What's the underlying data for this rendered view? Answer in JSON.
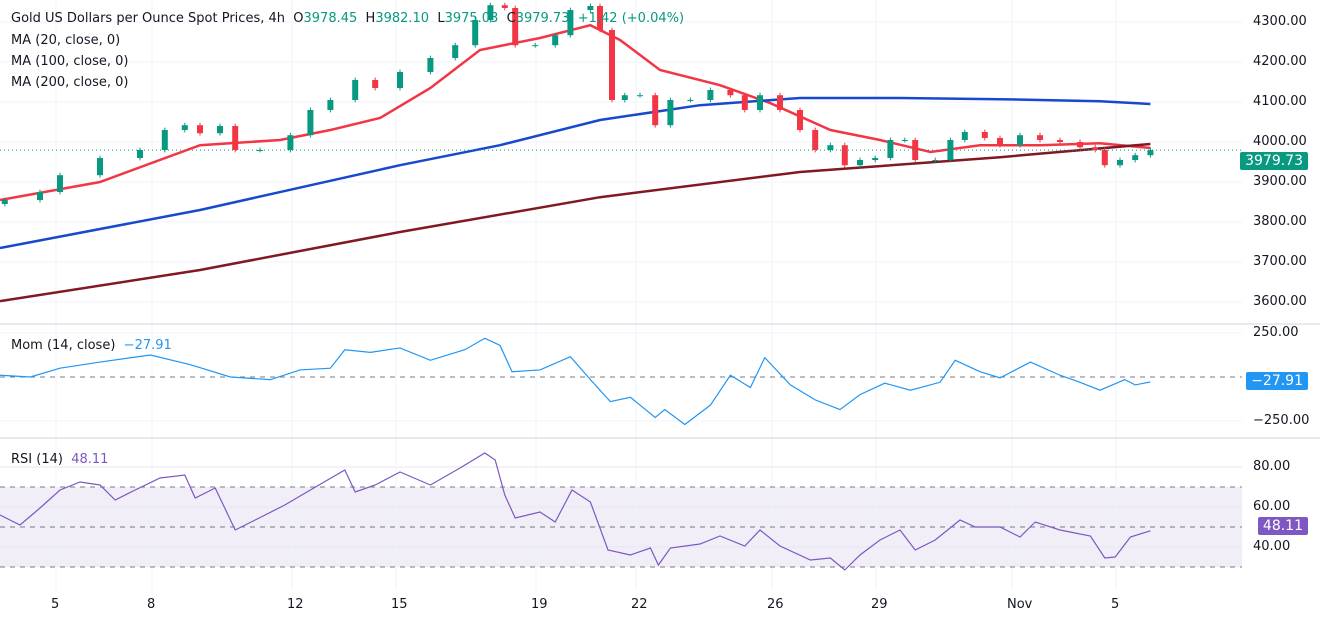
{
  "header": {
    "title": "Gold US Dollars per Ounce Spot Prices, 4h",
    "o_label": "O",
    "o": "3978.45",
    "h_label": "H",
    "h": "3982.10",
    "l_label": "L",
    "l": "3975.03",
    "c_label": "C",
    "c": "3979.73",
    "change": "+1.42 (+0.04%)"
  },
  "indicators": {
    "ma20": "MA (20, close, 0)",
    "ma100": "MA (100, close, 0)",
    "ma200": "MA (200, close, 0)",
    "mom": "Mom (14, close)",
    "mom_value": "−27.91",
    "rsi": "RSI (14)",
    "rsi_value": "48.11"
  },
  "colors": {
    "up": "#089981",
    "down": "#f23645",
    "ma20": "#f23645",
    "ma100": "#1848cc",
    "ma200": "#801922",
    "mom": "#2196f3",
    "rsi": "#7e57c2",
    "rsi_band": "#f1eef8"
  },
  "chart_data": [
    {
      "type": "candlestick",
      "title": "Gold US Dollars per Ounce Spot Prices, 4h",
      "x_unit": "4h bar index",
      "ylim": [
        3600,
        4300
      ],
      "y_ticks": [
        "4300.00",
        "4200.00",
        "4100.00",
        "4000.00",
        "3900.00",
        "3800.00",
        "3700.00",
        "3600.00"
      ],
      "last_price": "3979.73",
      "x_ticks": [
        {
          "bar": 7,
          "label": "5"
        },
        {
          "bar": 19,
          "label": "8"
        },
        {
          "bar": 36.5,
          "label": "12"
        },
        {
          "bar": 49.5,
          "label": "15"
        },
        {
          "bar": 67,
          "label": "19"
        },
        {
          "bar": 79.5,
          "label": "22"
        },
        {
          "bar": 96.5,
          "label": "26"
        },
        {
          "bar": 109.5,
          "label": "29"
        },
        {
          "bar": 126.5,
          "label": "Nov"
        },
        {
          "bar": 139.5,
          "label": "5"
        }
      ],
      "closes": [
        [
          0.6,
          3855
        ],
        [
          5,
          3875
        ],
        [
          7.5,
          3917
        ],
        [
          12.5,
          3960
        ],
        [
          17.5,
          3980
        ],
        [
          20.6,
          4030
        ],
        [
          23.1,
          4042
        ],
        [
          25,
          4022
        ],
        [
          27.5,
          4040
        ],
        [
          29.4,
          3980
        ],
        [
          32.5,
          3980
        ],
        [
          36.3,
          4017
        ],
        [
          38.8,
          4080
        ],
        [
          41.3,
          4105
        ],
        [
          44.4,
          4155
        ],
        [
          46.9,
          4135
        ],
        [
          50,
          4175
        ],
        [
          53.8,
          4210
        ],
        [
          56.9,
          4242
        ],
        [
          59.4,
          4305
        ],
        [
          61.3,
          4342
        ],
        [
          63.1,
          4335
        ],
        [
          64.4,
          4242
        ],
        [
          66.9,
          4242
        ],
        [
          69.4,
          4267
        ],
        [
          71.3,
          4330
        ],
        [
          73.8,
          4340
        ],
        [
          75,
          4280
        ],
        [
          76.5,
          4105
        ],
        [
          78.1,
          4117
        ],
        [
          80,
          4117
        ],
        [
          81.9,
          4042
        ],
        [
          83.8,
          4105
        ],
        [
          86.3,
          4105
        ],
        [
          88.8,
          4130
        ],
        [
          91.3,
          4117
        ],
        [
          93.1,
          4080
        ],
        [
          95,
          4117
        ],
        [
          97.5,
          4080
        ],
        [
          100,
          4030
        ],
        [
          101.9,
          3980
        ],
        [
          103.8,
          3992
        ],
        [
          105.6,
          3942
        ],
        [
          107.5,
          3955
        ],
        [
          109.4,
          3960
        ],
        [
          111.3,
          4005
        ],
        [
          113.1,
          4005
        ],
        [
          114.4,
          3955
        ],
        [
          116.9,
          3955
        ],
        [
          118.8,
          4005
        ],
        [
          120.6,
          4025
        ],
        [
          123.1,
          4010
        ],
        [
          125,
          3992
        ],
        [
          127.5,
          4017
        ],
        [
          130,
          4005
        ],
        [
          132.5,
          4000
        ],
        [
          135,
          3987
        ],
        [
          136.9,
          3980
        ],
        [
          138.1,
          3942
        ],
        [
          140,
          3955
        ],
        [
          141.9,
          3967
        ],
        [
          143.8,
          3979.73
        ]
      ],
      "series": [
        {
          "name": "MA (20, close, 0)",
          "points": [
            [
              0,
              3855
            ],
            [
              12.5,
              3900
            ],
            [
              25,
              3992
            ],
            [
              35,
              4005
            ],
            [
              41.3,
              4030
            ],
            [
              47.5,
              4060
            ],
            [
              53.8,
              4135
            ],
            [
              60,
              4230
            ],
            [
              67.5,
              4260
            ],
            [
              73.8,
              4292
            ],
            [
              77.5,
              4255
            ],
            [
              82.5,
              4180
            ],
            [
              90,
              4142
            ],
            [
              96.3,
              4097
            ],
            [
              103.8,
              4030
            ],
            [
              110,
              4005
            ],
            [
              116.3,
              3975
            ],
            [
              122.5,
              3992
            ],
            [
              130,
              3992
            ],
            [
              137.5,
              3997
            ],
            [
              143.8,
              3985
            ]
          ]
        },
        {
          "name": "MA (100, close, 0)",
          "points": [
            [
              0,
              3735
            ],
            [
              25,
              3830
            ],
            [
              50,
              3942
            ],
            [
              62.5,
              3992
            ],
            [
              75,
              4055
            ],
            [
              87.5,
              4092
            ],
            [
              100,
              4110
            ],
            [
              112.5,
              4110
            ],
            [
              125,
              4107
            ],
            [
              137.5,
              4102
            ],
            [
              143.8,
              4095
            ]
          ]
        },
        {
          "name": "MA (200, close, 0)",
          "points": [
            [
              0,
              3602
            ],
            [
              25,
              3680
            ],
            [
              50,
              3775
            ],
            [
              75,
              3862
            ],
            [
              100,
              3925
            ],
            [
              125,
              3962
            ],
            [
              143.8,
              3995
            ]
          ]
        }
      ]
    },
    {
      "type": "line",
      "name": "Mom (14, close)",
      "ylim": [
        -250,
        250
      ],
      "y_ticks": [
        "250.00",
        "−250.00"
      ],
      "last": "−27.91",
      "points": [
        [
          0,
          10
        ],
        [
          3.8,
          0
        ],
        [
          7.5,
          50
        ],
        [
          12.5,
          85
        ],
        [
          18.8,
          125
        ],
        [
          23.8,
          70
        ],
        [
          28.8,
          0
        ],
        [
          33.8,
          -15
        ],
        [
          37.5,
          40
        ],
        [
          41.3,
          50
        ],
        [
          43.1,
          155
        ],
        [
          46.3,
          140
        ],
        [
          50,
          165
        ],
        [
          53.8,
          95
        ],
        [
          58.1,
          155
        ],
        [
          60.6,
          220
        ],
        [
          62.5,
          180
        ],
        [
          64,
          30
        ],
        [
          67.5,
          40
        ],
        [
          71.3,
          115
        ],
        [
          73.8,
          -15
        ],
        [
          76.3,
          -140
        ],
        [
          78.8,
          -115
        ],
        [
          81.9,
          -230
        ],
        [
          83.1,
          -185
        ],
        [
          85.6,
          -270
        ],
        [
          88.8,
          -160
        ],
        [
          91.3,
          10
        ],
        [
          93.8,
          -60
        ],
        [
          95.6,
          110
        ],
        [
          98.8,
          -45
        ],
        [
          101.9,
          -130
        ],
        [
          105,
          -185
        ],
        [
          107.5,
          -100
        ],
        [
          110.6,
          -35
        ],
        [
          113.8,
          -75
        ],
        [
          117.5,
          -30
        ],
        [
          119.4,
          95
        ],
        [
          122.5,
          30
        ],
        [
          125,
          -5
        ],
        [
          128.8,
          85
        ],
        [
          132.5,
          10
        ],
        [
          135,
          -30
        ],
        [
          137.5,
          -75
        ],
        [
          140.6,
          -15
        ],
        [
          141.9,
          -45
        ],
        [
          143.8,
          -27.91
        ]
      ]
    },
    {
      "type": "line",
      "name": "RSI (14)",
      "ylim": [
        20,
        90
      ],
      "y_ticks": [
        "80.00",
        "60.00",
        "40.00"
      ],
      "bands": [
        30,
        50,
        70
      ],
      "last": "48.11",
      "points": [
        [
          0,
          56
        ],
        [
          2.5,
          51
        ],
        [
          5,
          59.5
        ],
        [
          7.5,
          68.5
        ],
        [
          10,
          72.5
        ],
        [
          12.5,
          71
        ],
        [
          14.4,
          63.5
        ],
        [
          16.9,
          68.5
        ],
        [
          20,
          74.5
        ],
        [
          23.1,
          76
        ],
        [
          24.4,
          64.5
        ],
        [
          26.9,
          69.5
        ],
        [
          29.4,
          48.5
        ],
        [
          31.9,
          53.5
        ],
        [
          35.6,
          61
        ],
        [
          38.8,
          68.5
        ],
        [
          43.1,
          78.5
        ],
        [
          44.4,
          67.5
        ],
        [
          46.9,
          71
        ],
        [
          50,
          77.5
        ],
        [
          53.8,
          71
        ],
        [
          57.5,
          79.5
        ],
        [
          60.6,
          87
        ],
        [
          61.9,
          83.5
        ],
        [
          63.1,
          66
        ],
        [
          64.4,
          54.5
        ],
        [
          67.5,
          57.5
        ],
        [
          69.4,
          52.5
        ],
        [
          71.5,
          68.5
        ],
        [
          73.8,
          62.5
        ],
        [
          76,
          38.5
        ],
        [
          78.8,
          36
        ],
        [
          81.3,
          39.5
        ],
        [
          82.3,
          31
        ],
        [
          83.8,
          39.5
        ],
        [
          87.5,
          41.5
        ],
        [
          90,
          45.5
        ],
        [
          93.1,
          40.5
        ],
        [
          95,
          48.5
        ],
        [
          97.5,
          40.5
        ],
        [
          101.3,
          33.5
        ],
        [
          103.8,
          34.5
        ],
        [
          105.6,
          28.5
        ],
        [
          107.5,
          36
        ],
        [
          110,
          43.5
        ],
        [
          112.5,
          48.5
        ],
        [
          114.4,
          38.5
        ],
        [
          116.9,
          43.5
        ],
        [
          120,
          53.5
        ],
        [
          121.9,
          50
        ],
        [
          125,
          50
        ],
        [
          127.5,
          45
        ],
        [
          129.4,
          52.5
        ],
        [
          132.5,
          48.5
        ],
        [
          136.3,
          45.5
        ],
        [
          138.1,
          34.5
        ],
        [
          139.4,
          35
        ],
        [
          141.3,
          45
        ],
        [
          143.8,
          48.11
        ]
      ]
    }
  ]
}
